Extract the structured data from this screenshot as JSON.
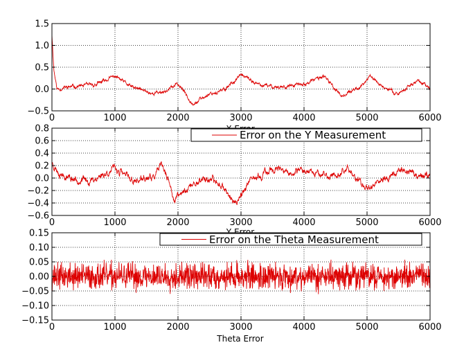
{
  "chart_data": [
    {
      "type": "line",
      "xlim": [
        0,
        6000
      ],
      "ylim": [
        -0.5,
        1.5
      ],
      "xticks": [
        0,
        1000,
        2000,
        3000,
        4000,
        5000,
        6000
      ],
      "xtick_labels": [
        "0",
        "1000",
        "2000",
        "3000",
        "4000",
        "5000",
        "6000"
      ],
      "yticks": [
        -0.5,
        0.0,
        0.5,
        1.0,
        1.5
      ],
      "ytick_labels": [
        "−0.5",
        "0.0",
        "0.5",
        "1.0",
        "1.5"
      ],
      "grid": true,
      "xlabel": "X Error",
      "line_color": "#dd0000",
      "seed": 11,
      "style": "walk",
      "noise": 0.022,
      "pts": [
        [
          0,
          1.25
        ],
        [
          30,
          0.45
        ],
        [
          80,
          0.0
        ],
        [
          300,
          0.05
        ],
        [
          700,
          0.1
        ],
        [
          1000,
          0.3
        ],
        [
          1250,
          0.05
        ],
        [
          1600,
          -0.1
        ],
        [
          1800,
          -0.05
        ],
        [
          2000,
          0.12
        ],
        [
          2250,
          -0.35
        ],
        [
          2500,
          -0.1
        ],
        [
          2700,
          -0.05
        ],
        [
          3000,
          0.32
        ],
        [
          3300,
          0.08
        ],
        [
          3600,
          0.05
        ],
        [
          4000,
          0.1
        ],
        [
          4300,
          0.3
        ],
        [
          4600,
          -0.15
        ],
        [
          4900,
          0.05
        ],
        [
          5050,
          0.3
        ],
        [
          5300,
          0.0
        ],
        [
          5500,
          -0.1
        ],
        [
          5800,
          0.2
        ],
        [
          6000,
          0.0
        ]
      ]
    },
    {
      "type": "line",
      "xlim": [
        0,
        6000
      ],
      "ylim": [
        -0.6,
        0.8
      ],
      "xticks": [
        0,
        1000,
        2000,
        3000,
        4000,
        5000,
        6000
      ],
      "xtick_labels": [
        "0",
        "1000",
        "2000",
        "3000",
        "4000",
        "5000",
        "6000"
      ],
      "yticks": [
        -0.6,
        -0.4,
        -0.2,
        0.0,
        0.2,
        0.4,
        0.6,
        0.8
      ],
      "ytick_labels": [
        "−0.6",
        "−0.4",
        "−0.2",
        "0.0",
        "0.2",
        "0.4",
        "0.6",
        "0.8"
      ],
      "grid": true,
      "xlabel": "Y Error",
      "legend": {
        "label": "Error on the Y Measurement",
        "position": "top-right"
      },
      "line_color": "#dd0000",
      "seed": 23,
      "style": "walk",
      "noise": 0.03,
      "pts": [
        [
          0,
          0.25
        ],
        [
          100,
          0.1
        ],
        [
          300,
          0.0
        ],
        [
          600,
          -0.05
        ],
        [
          1000,
          0.15
        ],
        [
          1300,
          -0.05
        ],
        [
          1600,
          0.0
        ],
        [
          1750,
          0.2
        ],
        [
          1950,
          -0.35
        ],
        [
          2100,
          -0.2
        ],
        [
          2400,
          0.0
        ],
        [
          2700,
          -0.1
        ],
        [
          2900,
          -0.42
        ],
        [
          3100,
          -0.1
        ],
        [
          3500,
          0.15
        ],
        [
          3800,
          0.05
        ],
        [
          4100,
          0.15
        ],
        [
          4400,
          0.0
        ],
        [
          4700,
          0.15
        ],
        [
          4950,
          -0.15
        ],
        [
          5200,
          -0.05
        ],
        [
          5600,
          0.15
        ],
        [
          5800,
          0.05
        ],
        [
          6000,
          0.05
        ]
      ]
    },
    {
      "type": "line",
      "xlim": [
        0,
        6000
      ],
      "ylim": [
        -0.15,
        0.15
      ],
      "xticks": [
        0,
        1000,
        2000,
        3000,
        4000,
        5000,
        6000
      ],
      "xtick_labels": [
        "0",
        "1000",
        "2000",
        "3000",
        "4000",
        "5000",
        "6000"
      ],
      "yticks": [
        -0.15,
        -0.1,
        -0.05,
        0.0,
        0.05,
        0.1,
        0.15
      ],
      "ytick_labels": [
        "−0.15",
        "−0.10",
        "−0.05",
        "0.00",
        "0.05",
        "0.10",
        "0.15"
      ],
      "grid": true,
      "xlabel": "Theta Error",
      "legend": {
        "label": "Error on the Theta Measurement",
        "position": "top-right"
      },
      "line_color": "#dd0000",
      "seed": 37,
      "style": "noise",
      "amplitude": 0.034,
      "pts": [
        [
          0,
          0.0
        ],
        [
          6000,
          0.0
        ]
      ]
    }
  ]
}
